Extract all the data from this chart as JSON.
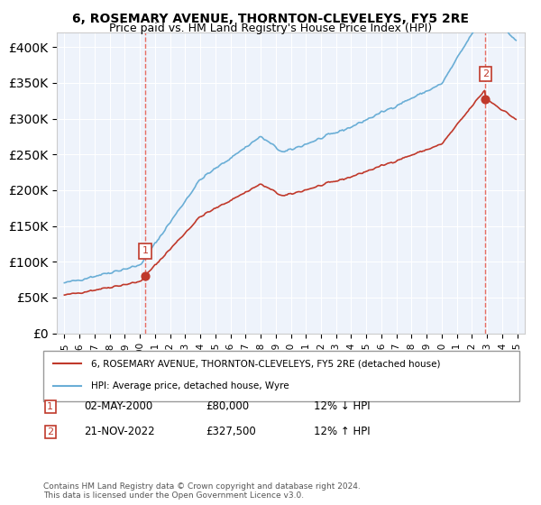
{
  "title": "6, ROSEMARY AVENUE, THORNTON-CLEVELEYS, FY5 2RE",
  "subtitle": "Price paid vs. HM Land Registry's House Price Index (HPI)",
  "legend_line1": "6, ROSEMARY AVENUE, THORNTON-CLEVELEYS, FY5 2RE (detached house)",
  "legend_line2": "HPI: Average price, detached house, Wyre",
  "annotation1_label": "1",
  "annotation1_date": "02-MAY-2000",
  "annotation1_price": "£80,000",
  "annotation1_hpi": "12% ↓ HPI",
  "annotation2_label": "2",
  "annotation2_date": "21-NOV-2022",
  "annotation2_price": "£327,500",
  "annotation2_hpi": "12% ↑ HPI",
  "footer": "Contains HM Land Registry data © Crown copyright and database right 2024.\nThis data is licensed under the Open Government Licence v3.0.",
  "sale1_year": 2000.35,
  "sale1_price": 80000,
  "sale2_year": 2022.9,
  "sale2_price": 327500,
  "hpi_color": "#6aaed6",
  "price_color": "#c0392b",
  "sale_dot_color": "#c0392b",
  "vline_color": "#e74c3c",
  "bg_color": "#eef3fb",
  "grid_color": "#ffffff",
  "annotation_box_color": "#c0392b",
  "ylim": [
    0,
    420000
  ],
  "xlim_start": 1994.5,
  "xlim_end": 2025.5
}
